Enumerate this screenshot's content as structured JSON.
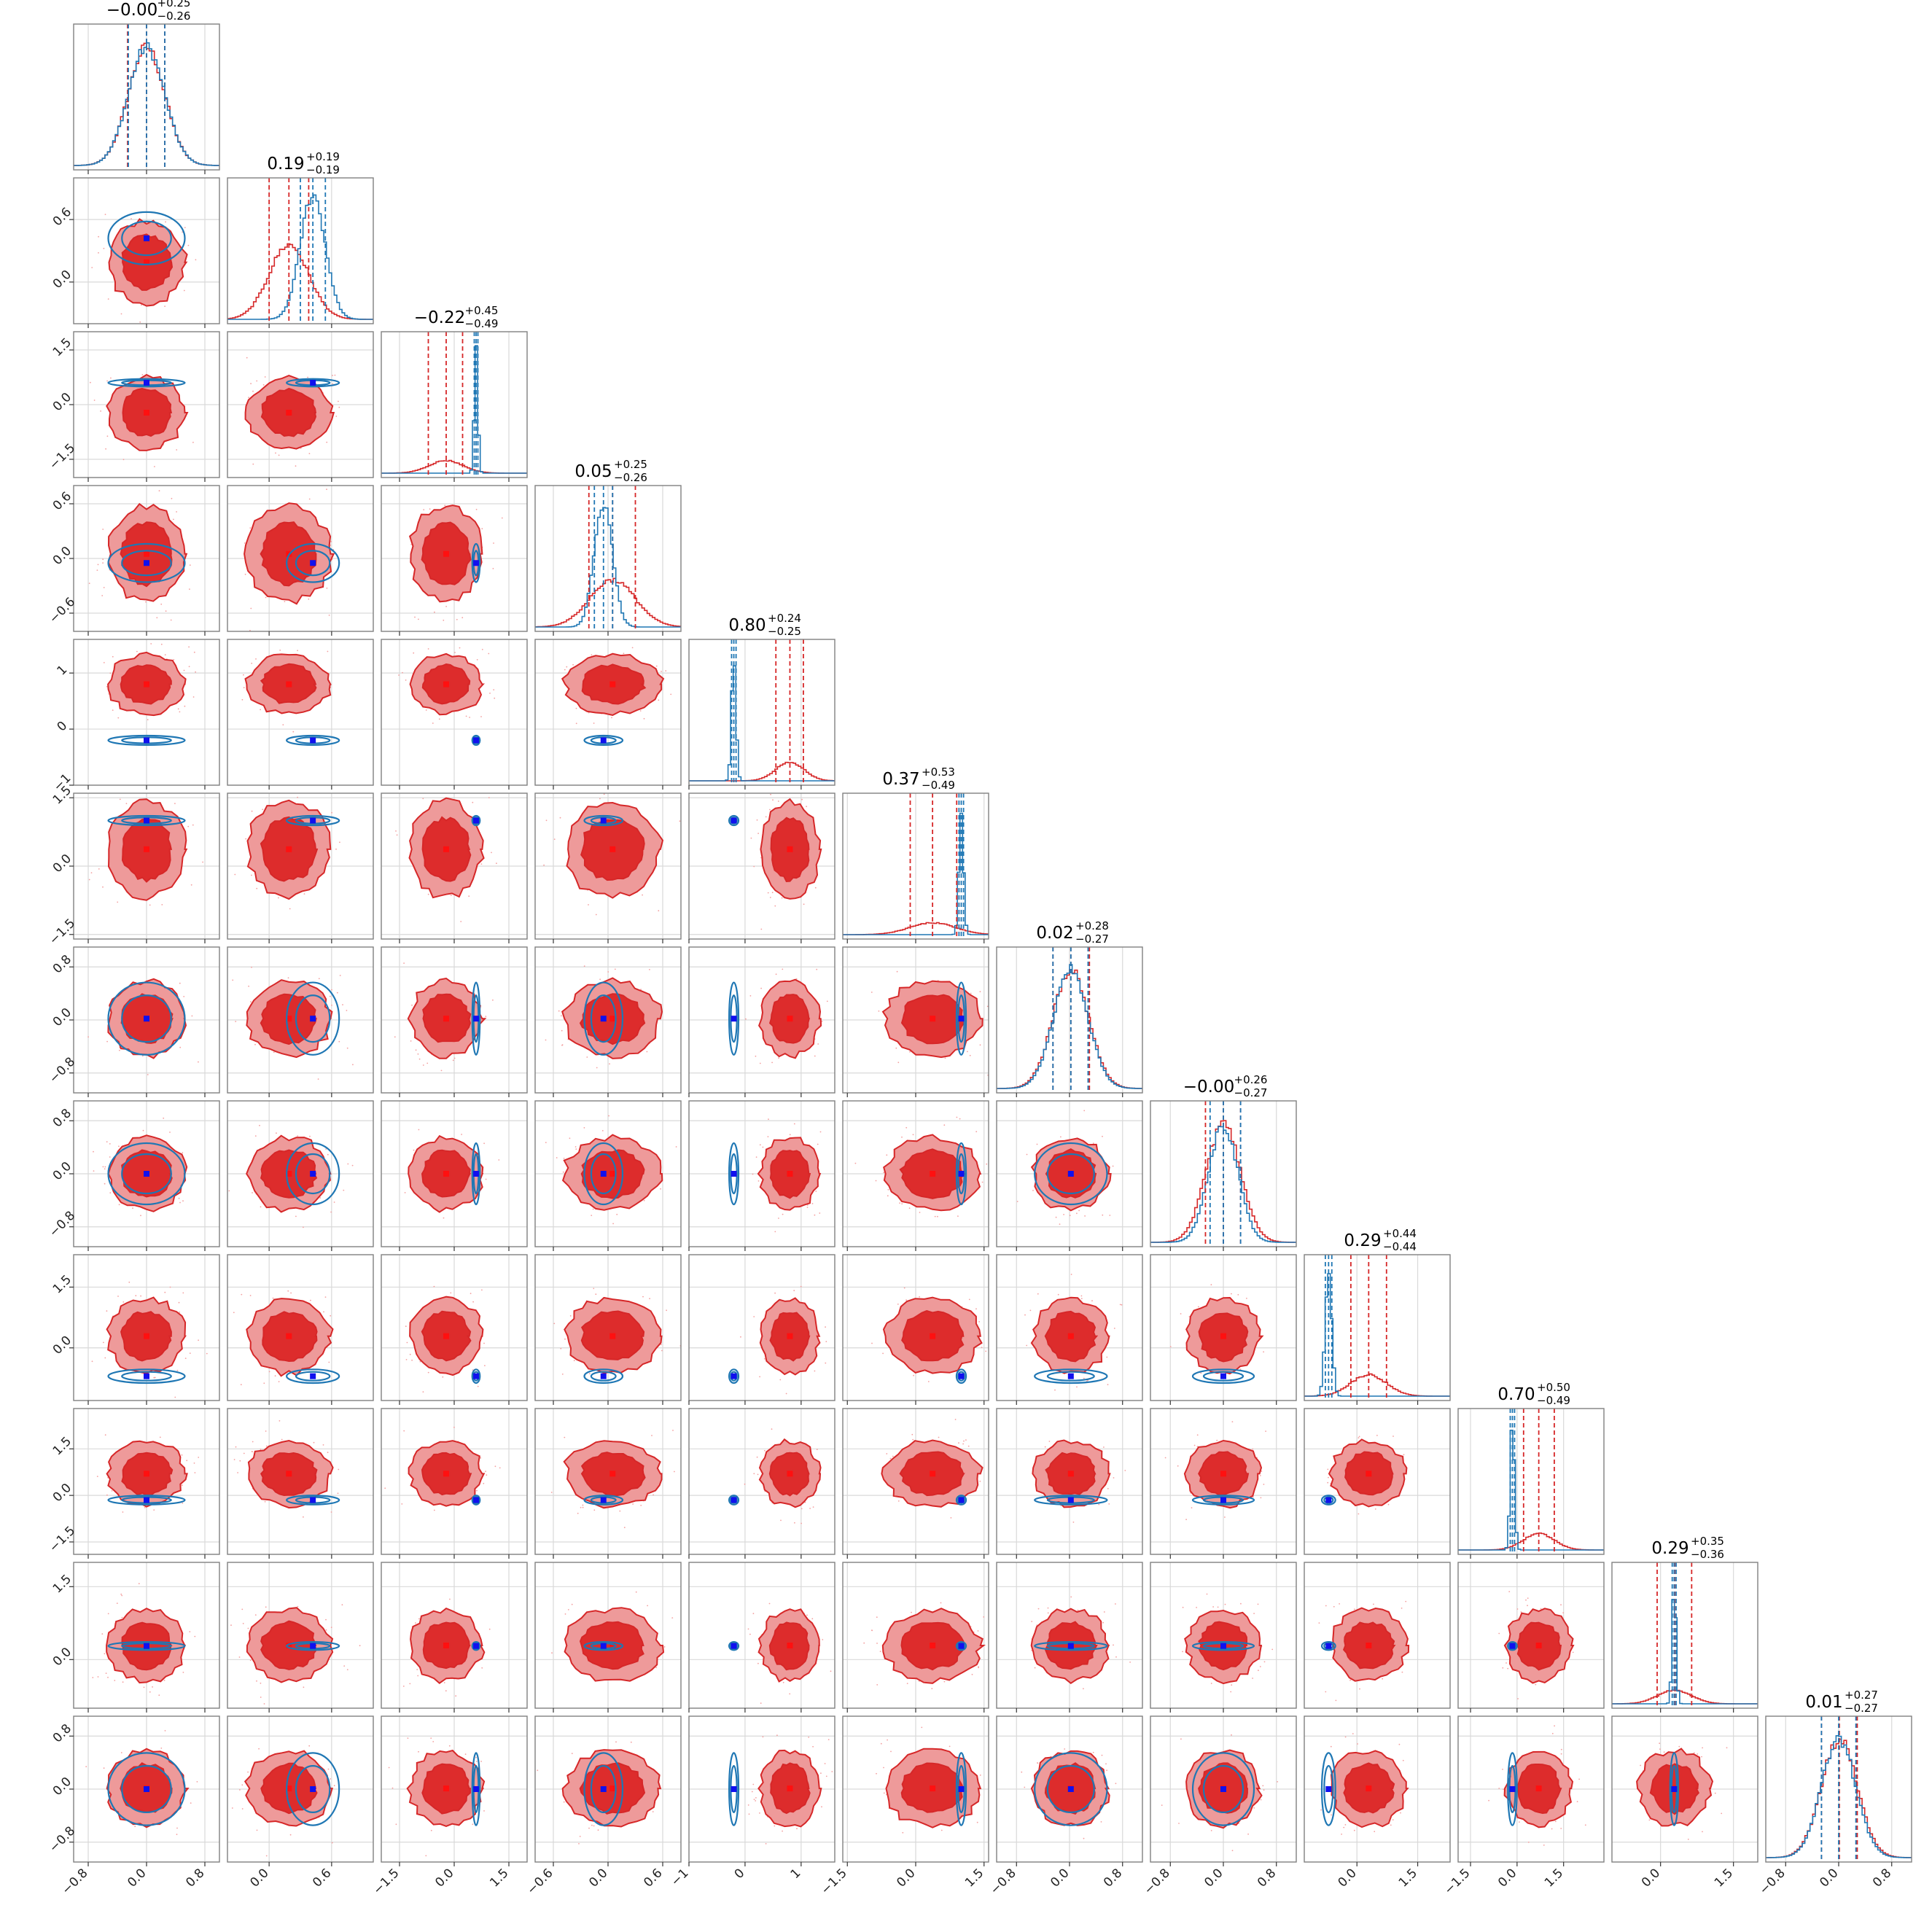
{
  "chart_data": {
    "type": "corner",
    "n_params": 12,
    "colors": {
      "red_line": "#d62728",
      "red_fill_outer": "#ee9a9a",
      "red_fill_inner": "#dd2c2c",
      "blue_line": "#1f77b4",
      "blue_marker": "#1010ee",
      "red_marker": "#ff1010",
      "grid": "#d9d9d9",
      "axes": "#808080"
    },
    "grid": true,
    "params": [
      {
        "title": "−0.00",
        "plus": "+0.25",
        "minus": "−0.26",
        "range": [
          -1.0,
          1.0
        ],
        "ticks": [
          -0.8,
          0.0,
          0.8
        ],
        "tick_labels": [
          "−0.8",
          "0.0",
          "0.8"
        ],
        "red": {
          "median": 0.0,
          "lo": -0.26,
          "hi": 0.25,
          "sigma": 0.25
        },
        "blue": {
          "median": 0.0,
          "lo": -0.25,
          "hi": 0.25,
          "sigma": 0.25
        }
      },
      {
        "title": "0.19",
        "plus": "+0.19",
        "minus": "−0.19",
        "range": [
          -0.4,
          1.0
        ],
        "ticks": [
          0.0,
          0.6
        ],
        "tick_labels": [
          "0.0",
          "0.6"
        ],
        "red": {
          "median": 0.19,
          "lo": 0.0,
          "hi": 0.38,
          "sigma": 0.19
        },
        "blue": {
          "median": 0.42,
          "lo": 0.3,
          "hi": 0.54,
          "sigma": 0.12
        }
      },
      {
        "title": "−0.22",
        "plus": "+0.45",
        "minus": "−0.49",
        "range": [
          -2.0,
          2.0
        ],
        "ticks": [
          -1.5,
          0.0,
          1.5
        ],
        "tick_labels": [
          "−1.5",
          "0.0",
          "1.5"
        ],
        "red": {
          "median": -0.22,
          "lo": -0.71,
          "hi": 0.23,
          "sigma": 0.47
        },
        "blue": {
          "median": 0.6,
          "lo": 0.55,
          "hi": 0.65,
          "sigma": 0.05
        }
      },
      {
        "title": "0.05",
        "plus": "+0.25",
        "minus": "−0.26",
        "range": [
          -0.8,
          0.8
        ],
        "ticks": [
          -0.6,
          0.0,
          0.6
        ],
        "tick_labels": [
          "−0.6",
          "0.0",
          "0.6"
        ],
        "red": {
          "median": 0.05,
          "lo": -0.21,
          "hi": 0.3,
          "sigma": 0.25
        },
        "blue": {
          "median": -0.05,
          "lo": -0.15,
          "hi": 0.05,
          "sigma": 0.1
        }
      },
      {
        "title": "0.80",
        "plus": "+0.24",
        "minus": "−0.25",
        "range": [
          -1.0,
          1.6
        ],
        "ticks": [
          -1.0,
          0.0,
          1.0
        ],
        "tick_labels": [
          "−1",
          "0",
          "1"
        ],
        "red": {
          "median": 0.8,
          "lo": 0.55,
          "hi": 1.04,
          "sigma": 0.25
        },
        "blue": {
          "median": -0.2,
          "lo": -0.24,
          "hi": -0.16,
          "sigma": 0.04
        }
      },
      {
        "title": "0.37",
        "plus": "+0.53",
        "minus": "−0.49",
        "range": [
          -1.6,
          1.6
        ],
        "ticks": [
          -1.5,
          0.0,
          1.5
        ],
        "tick_labels": [
          "−1.5",
          "0.0",
          "1.5"
        ],
        "red": {
          "median": 0.37,
          "lo": -0.12,
          "hi": 0.9,
          "sigma": 0.5
        },
        "blue": {
          "median": 1.0,
          "lo": 0.95,
          "hi": 1.05,
          "sigma": 0.05
        }
      },
      {
        "title": "0.02",
        "plus": "+0.28",
        "minus": "−0.27",
        "range": [
          -1.1,
          1.1
        ],
        "ticks": [
          -0.8,
          0.0,
          0.8
        ],
        "tick_labels": [
          "−0.8",
          "0.0",
          "0.8"
        ],
        "red": {
          "median": 0.02,
          "lo": -0.25,
          "hi": 0.3,
          "sigma": 0.27
        },
        "blue": {
          "median": 0.02,
          "lo": -0.25,
          "hi": 0.28,
          "sigma": 0.26
        }
      },
      {
        "title": "−0.00",
        "plus": "+0.26",
        "minus": "−0.27",
        "range": [
          -1.1,
          1.1
        ],
        "ticks": [
          -0.8,
          0.0,
          0.8
        ],
        "tick_labels": [
          "−0.8",
          "0.0",
          "0.8"
        ],
        "red": {
          "median": 0.0,
          "lo": -0.27,
          "hi": 0.26,
          "sigma": 0.26
        },
        "blue": {
          "median": 0.0,
          "lo": -0.2,
          "hi": 0.26,
          "sigma": 0.22
        }
      },
      {
        "title": "0.29",
        "plus": "+0.44",
        "minus": "−0.44",
        "range": [
          -1.3,
          2.3
        ],
        "ticks": [
          0.0,
          1.5
        ],
        "tick_labels": [
          "0.0",
          "1.5"
        ],
        "red": {
          "median": 0.29,
          "lo": -0.15,
          "hi": 0.73,
          "sigma": 0.44
        },
        "blue": {
          "median": -0.7,
          "lo": -0.78,
          "hi": -0.62,
          "sigma": 0.08
        }
      },
      {
        "title": "0.70",
        "plus": "+0.50",
        "minus": "−0.49",
        "range": [
          -1.9,
          2.8
        ],
        "ticks": [
          -1.5,
          0.0,
          1.5
        ],
        "tick_labels": [
          "−1.5",
          "0.0",
          "1.5"
        ],
        "red": {
          "median": 0.7,
          "lo": 0.21,
          "hi": 1.2,
          "sigma": 0.5
        },
        "blue": {
          "median": -0.15,
          "lo": -0.22,
          "hi": -0.08,
          "sigma": 0.07
        }
      },
      {
        "title": "0.29",
        "plus": "+0.35",
        "minus": "−0.36",
        "range": [
          -1.0,
          2.0
        ],
        "ticks": [
          0.0,
          1.5
        ],
        "tick_labels": [
          "0.0",
          "1.5"
        ],
        "red": {
          "median": 0.29,
          "lo": -0.07,
          "hi": 0.64,
          "sigma": 0.35
        },
        "blue": {
          "median": 0.28,
          "lo": 0.24,
          "hi": 0.32,
          "sigma": 0.04
        }
      },
      {
        "title": "0.01",
        "plus": "+0.27",
        "minus": "−0.27",
        "range": [
          -1.1,
          1.1
        ],
        "ticks": [
          -0.8,
          0.0,
          0.8
        ],
        "tick_labels": [
          "−0.8",
          "0.0",
          "0.8"
        ],
        "red": {
          "median": 0.01,
          "lo": -0.26,
          "hi": 0.28,
          "sigma": 0.27
        },
        "blue": {
          "median": 0.0,
          "lo": -0.26,
          "hi": 0.26,
          "sigma": 0.26
        }
      }
    ]
  }
}
